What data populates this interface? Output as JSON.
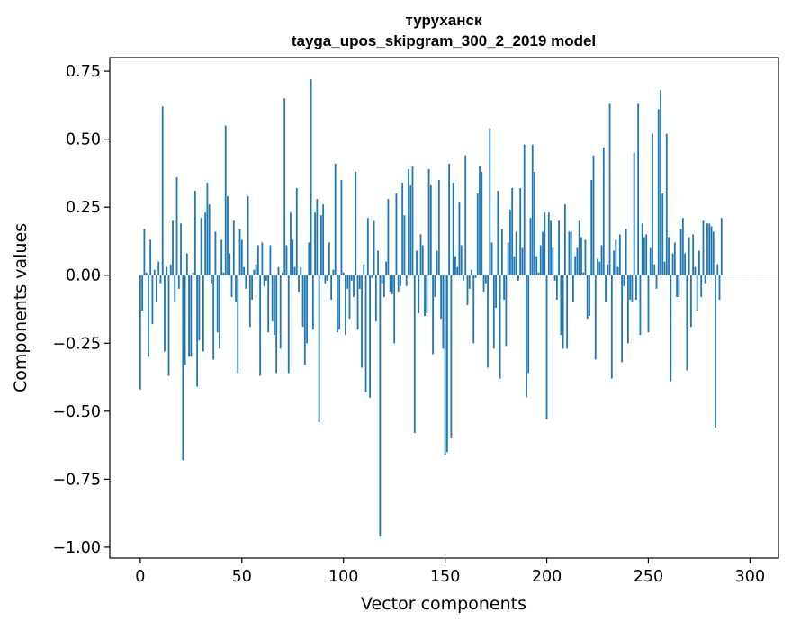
{
  "chart_data": {
    "type": "bar",
    "title": "туруханск",
    "subtitle": "tayga_upos_skipgram_300_2_2019 model",
    "xlabel": "Vector components",
    "ylabel": "Components values",
    "xlim": [
      -15,
      314
    ],
    "ylim": [
      -1.04,
      0.8
    ],
    "xticks": [
      0,
      50,
      100,
      150,
      200,
      250,
      300
    ],
    "xtick_labels": [
      "0",
      "50",
      "100",
      "150",
      "200",
      "250",
      "300"
    ],
    "yticks": [
      0.75,
      0.5,
      0.25,
      0.0,
      -0.25,
      -0.5,
      -0.75,
      -1.0
    ],
    "ytick_labels": [
      "0.75",
      "0.50",
      "0.25",
      "0.00",
      "−0.25",
      "−0.50",
      "−0.75",
      "−1.00"
    ],
    "grid": false,
    "color": "#1f77b4",
    "x_start": 0,
    "values": [
      -0.42,
      -0.13,
      0.17,
      0.01,
      -0.3,
      0.13,
      -0.18,
      0.02,
      -0.1,
      0.05,
      -0.03,
      0.62,
      -0.28,
      0.03,
      -0.37,
      0.04,
      0.2,
      -0.1,
      0.36,
      -0.05,
      0.19,
      -0.68,
      -0.33,
      0.08,
      -0.3,
      -0.3,
      0.01,
      0.31,
      -0.41,
      -0.24,
      0.21,
      -0.28,
      0.23,
      0.34,
      0.26,
      -0.03,
      -0.31,
      0.16,
      -0.21,
      -0.27,
      0.13,
      0.01,
      0.55,
      0.29,
      0.08,
      -0.08,
      0.2,
      -0.1,
      -0.36,
      0.17,
      0.13,
      0.03,
      -0.05,
      0.29,
      -0.19,
      -0.09,
      0.02,
      0.04,
      0.11,
      -0.37,
      0.12,
      -0.04,
      -0.02,
      -0.21,
      0.11,
      -0.17,
      -0.22,
      -0.36,
      0.03,
      -0.27,
      0.01,
      0.65,
      0.11,
      -0.36,
      0.23,
      0.13,
      0.03,
      0.32,
      -0.06,
      0.03,
      -0.19,
      -0.33,
      -0.25,
      0.12,
      0.72,
      -0.2,
      0.23,
      0.28,
      -0.54,
      0.22,
      0.26,
      -0.03,
      -0.02,
      0.12,
      -0.09,
      0.02,
      0.41,
      -0.21,
      -0.2,
      0.35,
      0.01,
      -0.22,
      -0.05,
      -0.16,
      -0.02,
      -0.08,
      0.38,
      -0.2,
      -0.05,
      -0.34,
      0.04,
      -0.43,
      0.21,
      -0.45,
      -0.01,
      0.2,
      -0.17,
      0.09,
      -0.96,
      -0.03,
      -0.08,
      0.05,
      0.28,
      -0.06,
      -0.07,
      -0.25,
      0.3,
      -0.06,
      -0.04,
      0.34,
      0.22,
      -0.04,
      0.39,
      0.33,
      0.4,
      -0.58,
      0.09,
      -0.14,
      0.15,
      0.11,
      -0.15,
      -0.14,
      0.39,
      0.33,
      -0.29,
      -0.08,
      0.09,
      0.35,
      -0.16,
      -0.27,
      -0.66,
      -0.65,
      0.41,
      -0.6,
      0.34,
      0.07,
      0.03,
      0.27,
      0.11,
      -0.02,
      0.44,
      -0.11,
      -0.05,
      0.02,
      -0.25,
      -0.01,
      0.3,
      0.4,
      0.38,
      -0.06,
      -0.03,
      -0.34,
      0.54,
      0.12,
      -0.27,
      -0.12,
      0.31,
      -0.38,
      0.17,
      -0.09,
      -0.26,
      0.12,
      0.24,
      0.32,
      0.07,
      0.16,
      -0.02,
      0.32,
      0.1,
      0.48,
      -0.45,
      -0.36,
      0.21,
      0.48,
      0.38,
      0.07,
      0.01,
      0.11,
      0.16,
      0.23,
      -0.53,
      0.23,
      0.2,
      0.1,
      -0.02,
      -0.09,
      0.2,
      -0.22,
      -0.27,
      0.26,
      -0.27,
      0.16,
      0.16,
      -0.1,
      0.07,
      0.1,
      0.2,
      0.14,
      0.01,
      0.13,
      -0.16,
      -0.15,
      0.35,
      0.44,
      -0.31,
      0.06,
      0.05,
      0.11,
      0.47,
      -0.1,
      0.04,
      0.63,
      -0.38,
      0.09,
      0.13,
      0.03,
      0.15,
      -0.32,
      -0.04,
      0.17,
      -0.25,
      -0.09,
      -0.1,
      0.45,
      -0.09,
      0.63,
      -0.22,
      0.19,
      0.14,
      0.15,
      -0.21,
      0.1,
      0.52,
      0.04,
      -0.05,
      0.61,
      0.68,
      0.3,
      0.05,
      0.52,
      0.14,
      -0.39,
      0.08,
      0.12,
      -0.08,
      -0.08,
      0.17,
      0.21,
      0.08,
      -0.35,
      0.14,
      -0.19,
      0.15,
      0.03,
      -0.13,
      0.09,
      -0.08,
      0.2,
      -0.03,
      0.19,
      0.19,
      0.18,
      0.16,
      -0.56,
      0.04,
      -0.09,
      0.21,
      0.0,
      0.0,
      0.0,
      0.0,
      0.0,
      0.0,
      0.0,
      0.0,
      0.0,
      0.0,
      0.0,
      0.0,
      0.0,
      0.0,
      0.0,
      0.0,
      0.0,
      0.0,
      0.0,
      0.0,
      0.0,
      0.0,
      0.0,
      0.0,
      0.0,
      0.0,
      0.0
    ]
  }
}
